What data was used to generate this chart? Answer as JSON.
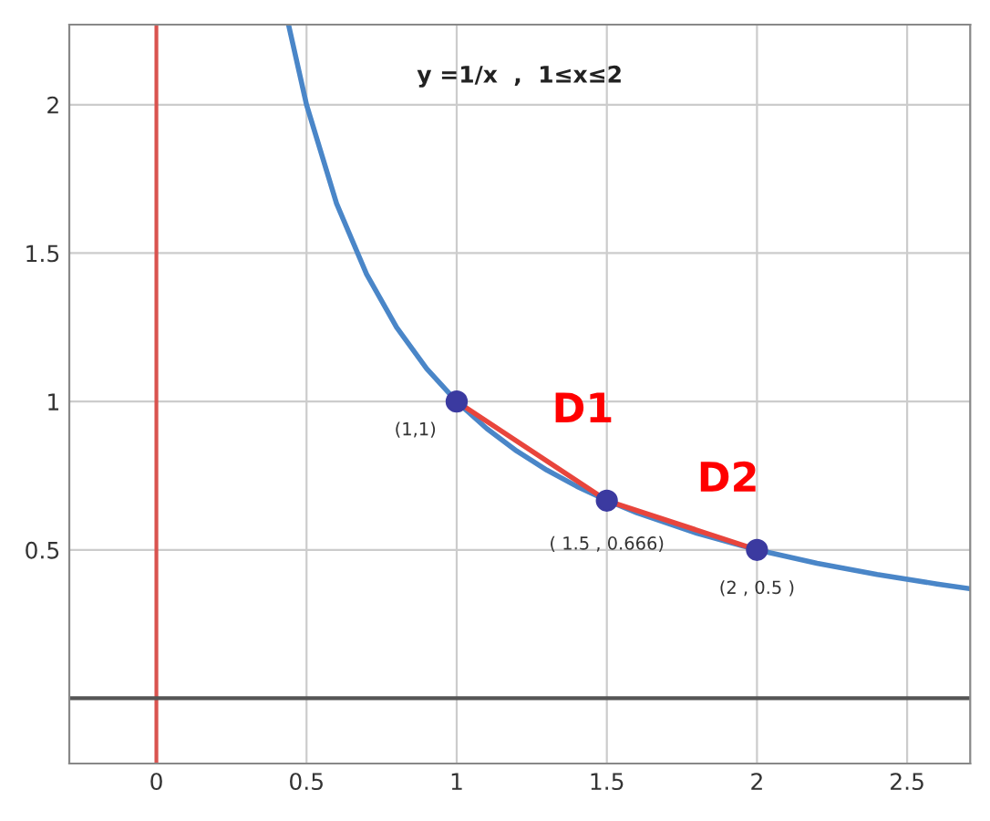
{
  "chart_data": {
    "type": "line",
    "xlim": [
      -0.29,
      2.71
    ],
    "ylim": [
      -0.22,
      2.27
    ],
    "xticks": [
      0,
      0.5,
      1,
      1.5,
      2,
      2.5
    ],
    "yticks": [
      0.5,
      1,
      1.5,
      2
    ],
    "grid": true,
    "series": [
      {
        "color": "#4a86c8",
        "marker": "none",
        "x": [
          0.44,
          0.5,
          0.6,
          0.7,
          0.8,
          0.9,
          1,
          1.1,
          1.2,
          1.3,
          1.4,
          1.5,
          1.6,
          1.8,
          2,
          2.2,
          2.4,
          2.6,
          2.71
        ],
        "values": [
          2.27,
          2,
          1.667,
          1.429,
          1.25,
          1.111,
          1,
          0.909,
          0.833,
          0.769,
          0.714,
          0.667,
          0.625,
          0.556,
          0.5,
          0.455,
          0.417,
          0.385,
          0.369
        ]
      },
      {
        "color": "#e8453c",
        "marker": "none",
        "x": [
          1,
          1.5,
          2
        ],
        "values": [
          1,
          0.666,
          0.5
        ]
      },
      {
        "type": "scatter",
        "color": "#3b3aa0",
        "marker": "circle",
        "x": [
          1,
          1.5,
          2
        ],
        "values": [
          1,
          0.666,
          0.5
        ]
      }
    ],
    "ref_lines": [
      {
        "axis": "x",
        "value": 0,
        "color": "#d9534f"
      },
      {
        "axis": "y",
        "value": 0,
        "color": "#555555"
      }
    ],
    "annotations": [
      {
        "text": "y =1/x  ,  1≤x≤2"
      },
      {
        "text": "(1,1)",
        "x": 1,
        "y": 1
      },
      {
        "text": "( 1.5 , 0.666)",
        "x": 1.5,
        "y": 0.666
      },
      {
        "text": "(2 , 0.5 )",
        "x": 2,
        "y": 0.5
      },
      {
        "text": "D1",
        "x": 1.25,
        "y": 0.833
      },
      {
        "text": "D2",
        "x": 1.75,
        "y": 0.583
      }
    ]
  }
}
